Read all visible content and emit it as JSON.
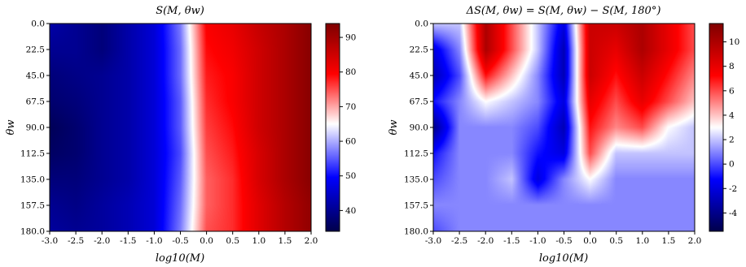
{
  "chart_data": [
    {
      "type": "heatmap",
      "title": "S(M, θw)",
      "xlabel": "log10(M)",
      "ylabel": "θw",
      "xlim": [
        -3.0,
        2.0
      ],
      "ylim": [
        0.0,
        180.0
      ],
      "y_inverted": true,
      "x_ticks": [
        "-3.0",
        "-2.5",
        "-2.0",
        "-1.5",
        "-1.0",
        "-0.5",
        "0.0",
        "0.5",
        "1.0",
        "1.5",
        "2.0"
      ],
      "y_ticks": [
        "0.0",
        "22.5",
        "45.0",
        "67.5",
        "90.0",
        "112.5",
        "135.0",
        "157.5",
        "180.0"
      ],
      "colorbar": {
        "min": 34,
        "max": 94,
        "center": 65,
        "ticks": [
          "40",
          "50",
          "60",
          "70",
          "80",
          "90"
        ],
        "colormap": "seismic"
      },
      "x": [
        -3.0,
        -2.5,
        -2.0,
        -1.5,
        -1.0,
        -0.5,
        0.0,
        0.5,
        1.0,
        1.5,
        2.0
      ],
      "y": [
        0.0,
        22.5,
        45.0,
        67.5,
        90.0,
        112.5,
        135.0,
        157.5,
        180.0
      ],
      "z": [
        [
          42,
          40,
          38,
          42,
          46,
          57,
          80,
          82,
          86,
          89,
          93
        ],
        [
          40,
          40,
          38,
          42,
          46,
          56,
          79,
          81,
          85,
          89,
          93
        ],
        [
          38,
          39,
          40,
          42,
          46,
          56,
          78,
          80,
          85,
          89,
          93
        ],
        [
          37,
          38,
          40,
          42,
          46,
          55,
          77,
          80,
          85,
          89,
          93
        ],
        [
          35,
          37,
          40,
          42,
          46,
          55,
          76,
          79,
          85,
          89,
          93
        ],
        [
          36,
          37,
          40,
          42,
          46,
          54,
          75,
          78,
          84,
          89,
          93
        ],
        [
          38,
          38,
          40,
          42,
          46,
          55,
          74,
          77,
          84,
          89,
          93
        ],
        [
          40,
          39,
          41,
          43,
          46,
          56,
          74,
          77,
          83,
          88,
          92
        ],
        [
          41,
          40,
          41,
          43,
          46,
          57,
          75,
          77,
          83,
          88,
          92
        ]
      ]
    },
    {
      "type": "heatmap",
      "title": "ΔS(M, θw) = S(M, θw) − S(M, 180°)",
      "xlabel": "log10(M)",
      "ylabel": "θw",
      "xlim": [
        -3.0,
        2.0
      ],
      "ylim": [
        0.0,
        180.0
      ],
      "y_inverted": true,
      "x_ticks": [
        "-3.0",
        "-2.5",
        "-2.0",
        "-1.5",
        "-1.0",
        "-0.5",
        "0.0",
        "0.5",
        "1.0",
        "1.5",
        "2.0"
      ],
      "y_ticks": [
        "0.0",
        "22.5",
        "45.0",
        "67.5",
        "90.0",
        "112.5",
        "135.0",
        "157.5",
        "180.0"
      ],
      "colorbar": {
        "min": -5.5,
        "max": 11.5,
        "center": 3,
        "ticks": [
          "-4",
          "-2",
          "0",
          "2",
          "4",
          "6",
          "8",
          "10"
        ],
        "colormap": "seismic"
      },
      "x": [
        -3.0,
        -2.5,
        -2.0,
        -1.5,
        -1.0,
        -0.5,
        0.0,
        0.5,
        1.0,
        1.5,
        2.0
      ],
      "y": [
        0.0,
        22.5,
        45.0,
        67.5,
        90.0,
        112.5,
        135.0,
        157.5,
        180.0
      ],
      "z": [
        [
          2,
          2,
          10,
          6,
          2,
          -2,
          9,
          9,
          10,
          8,
          6
        ],
        [
          -2,
          1,
          10,
          6,
          2,
          -3,
          9,
          8,
          10,
          8,
          6
        ],
        [
          -3,
          0,
          7,
          4,
          1,
          -3,
          9,
          7,
          9,
          7,
          5
        ],
        [
          -1,
          1,
          3,
          2,
          1,
          -2,
          8,
          6,
          8,
          6,
          4
        ],
        [
          -4,
          1,
          1,
          1,
          0,
          -3,
          7,
          5,
          6,
          3,
          2
        ],
        [
          -1,
          1,
          1,
          1,
          -1,
          -2,
          6,
          2,
          2,
          2,
          2
        ],
        [
          0,
          1,
          1,
          2,
          -2,
          1,
          3,
          1,
          1,
          1,
          1
        ],
        [
          1,
          1,
          1,
          1,
          1,
          1,
          1,
          1,
          1,
          1,
          1
        ],
        [
          0,
          1,
          1,
          1,
          1,
          1,
          1,
          1,
          1,
          1,
          1
        ]
      ]
    }
  ]
}
